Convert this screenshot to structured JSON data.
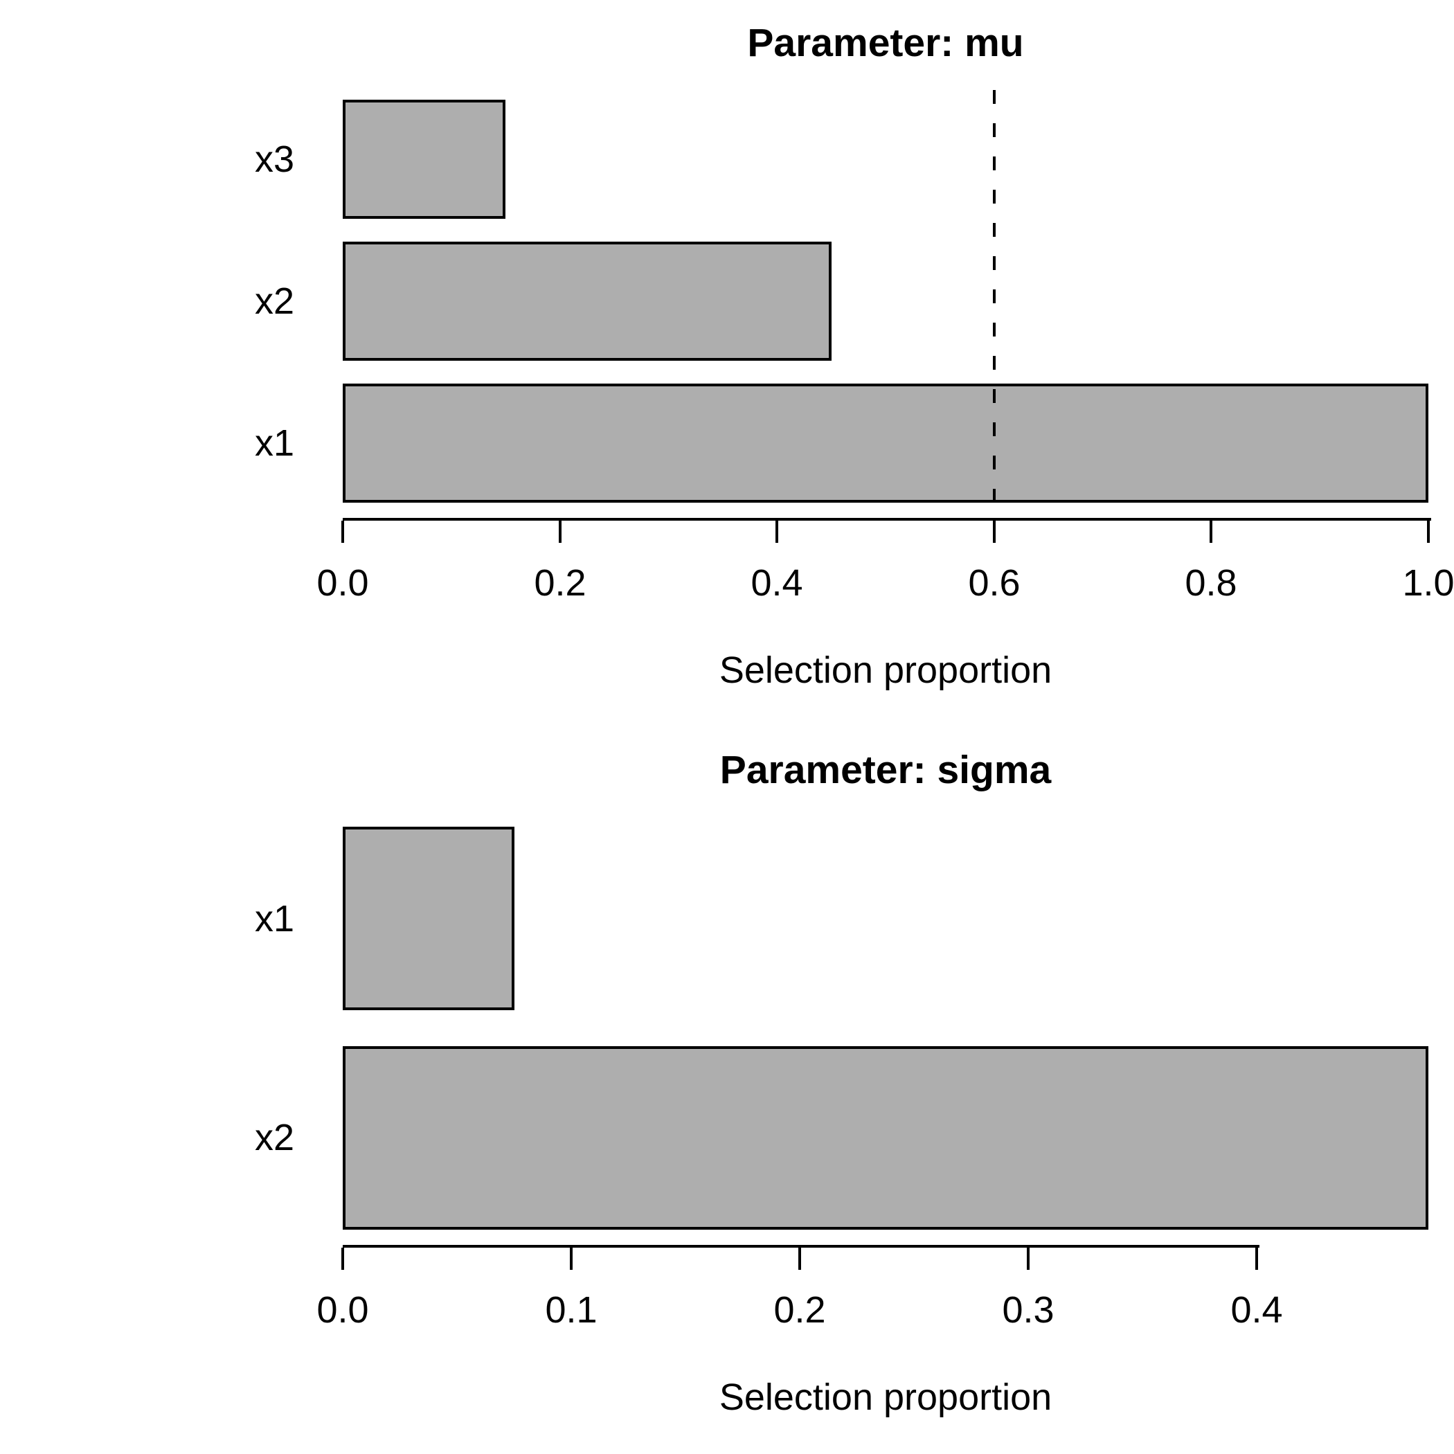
{
  "figure": {
    "background": "#ffffff",
    "text_color": "#000000"
  },
  "chart_data": [
    {
      "type": "bar",
      "orientation": "horizontal",
      "title": "Parameter: mu",
      "categories": [
        "x3",
        "x2",
        "x1"
      ],
      "values": [
        0.15,
        0.45,
        1.0
      ],
      "xlabel": "Selection proportion",
      "xticks": [
        "0.0",
        "0.2",
        "0.4",
        "0.6",
        "0.8",
        "1.0"
      ],
      "xtick_values": [
        0.0,
        0.2,
        0.4,
        0.6,
        0.8,
        1.0
      ],
      "xlim": [
        0,
        1.0
      ],
      "grid": false,
      "legend": null,
      "threshold_line": {
        "value": 0.6,
        "style": "dashed",
        "color": "#000000"
      },
      "bar_fill": "#aeaeae",
      "bar_border": "#000000"
    },
    {
      "type": "bar",
      "orientation": "horizontal",
      "title": "Parameter: sigma",
      "categories": [
        "x1",
        "x2"
      ],
      "values": [
        0.075,
        0.475
      ],
      "xlabel": "Selection proportion",
      "xticks": [
        "0.0",
        "0.1",
        "0.2",
        "0.3",
        "0.4"
      ],
      "xtick_values": [
        0.0,
        0.1,
        0.2,
        0.3,
        0.4
      ],
      "xlim": [
        0,
        0.475
      ],
      "grid": false,
      "legend": null,
      "threshold_line": null,
      "bar_fill": "#aeaeae",
      "bar_border": "#000000"
    }
  ]
}
